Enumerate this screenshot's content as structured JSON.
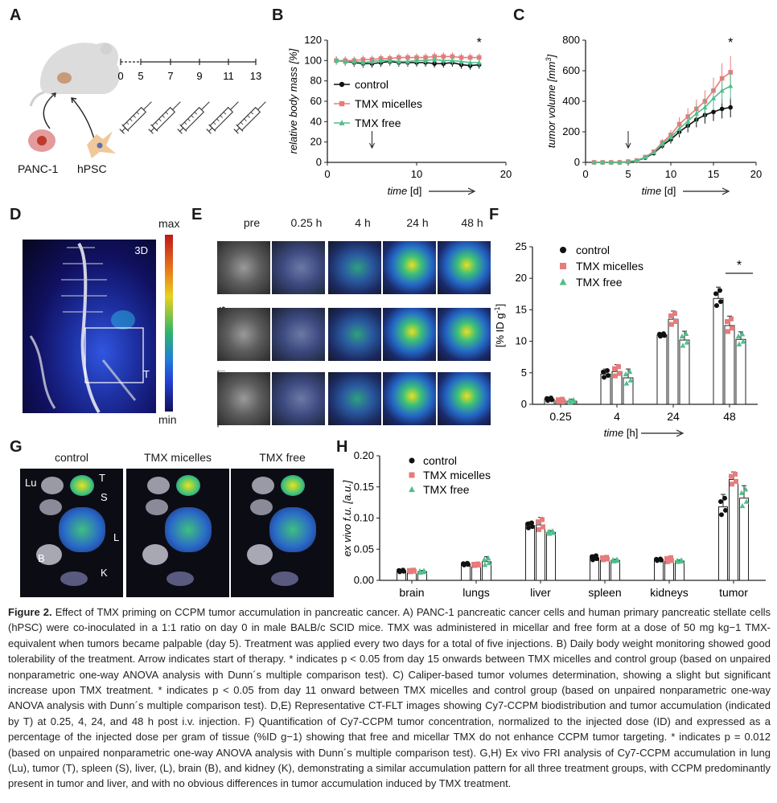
{
  "panel_letters": [
    "A",
    "B",
    "C",
    "D",
    "E",
    "F",
    "G",
    "H"
  ],
  "panel_a": {
    "labels": {
      "panc": "PANC-1",
      "hpsc": "hPSC"
    },
    "timeline_ticks": [
      "0",
      "5",
      "7",
      "9",
      "11",
      "13"
    ]
  },
  "panel_d": {
    "label_3d": "3D",
    "label_t": "T",
    "scale_max": "max",
    "scale_min": "min",
    "colors": [
      "#c01818",
      "#e8d21e",
      "#2fb56a",
      "#2443d8",
      "#11115a"
    ]
  },
  "panel_e": {
    "timepoints": [
      "pre",
      "0.25 h",
      "4 h",
      "24 h",
      "48 h"
    ],
    "rows": [
      "control",
      "TMX micelles",
      "TMX free"
    ]
  },
  "panel_g": {
    "columns": [
      "control",
      "TMX micelles",
      "TMX free"
    ],
    "organ_labels": {
      "lu": "Lu",
      "t": "T",
      "s": "S",
      "l": "L",
      "b": "B",
      "k": "K"
    }
  },
  "legend": {
    "control": "control",
    "micelles": "TMX micelles",
    "free": "TMX free"
  },
  "colors": {
    "control": "#111111",
    "micelles": "#e87b7b",
    "free": "#4fbf8c"
  },
  "chart_data": [
    {
      "id": "B",
      "type": "line",
      "xlabel": "time [d]",
      "ylabel": "relative body mass [%]",
      "xlim": [
        0,
        20
      ],
      "ylim": [
        0,
        120
      ],
      "xticks": [
        0,
        10,
        20
      ],
      "yticks": [
        0,
        20,
        40,
        60,
        80,
        100,
        120
      ],
      "annotation": "*",
      "x": [
        1,
        2,
        3,
        4,
        5,
        6,
        7,
        8,
        9,
        10,
        11,
        12,
        13,
        14,
        15,
        16,
        17
      ],
      "series": [
        {
          "name": "control",
          "values": [
            100,
            99,
            98,
            97,
            97,
            98,
            99,
            98,
            98,
            98,
            98,
            97,
            97,
            98,
            96,
            95,
            96
          ]
        },
        {
          "name": "TMX micelles",
          "values": [
            100,
            100,
            100,
            101,
            101,
            102,
            102,
            103,
            103,
            103,
            103,
            104,
            104,
            104,
            103,
            103,
            103
          ]
        },
        {
          "name": "TMX free",
          "values": [
            100,
            99,
            99,
            98,
            99,
            100,
            100,
            99,
            99,
            100,
            100,
            101,
            100,
            100,
            99,
            98,
            98
          ]
        }
      ]
    },
    {
      "id": "C",
      "type": "line",
      "xlabel": "time [d]",
      "ylabel": "tumor volume [mm3]",
      "xlim": [
        0,
        20
      ],
      "ylim": [
        0,
        800
      ],
      "xticks": [
        0,
        5,
        10,
        15,
        20
      ],
      "yticks": [
        0,
        200,
        400,
        600,
        800
      ],
      "annotation": "*",
      "x": [
        1,
        2,
        3,
        4,
        5,
        6,
        7,
        8,
        9,
        10,
        11,
        12,
        13,
        14,
        15,
        16,
        17
      ],
      "series": [
        {
          "name": "control",
          "values": [
            0,
            0,
            0,
            0,
            5,
            10,
            30,
            60,
            110,
            150,
            200,
            240,
            280,
            310,
            330,
            350,
            360
          ]
        },
        {
          "name": "TMX micelles",
          "values": [
            0,
            0,
            0,
            0,
            5,
            12,
            35,
            70,
            130,
            180,
            250,
            300,
            350,
            400,
            470,
            550,
            590
          ]
        },
        {
          "name": "TMX free",
          "values": [
            0,
            0,
            0,
            0,
            5,
            12,
            33,
            65,
            120,
            165,
            220,
            270,
            320,
            360,
            420,
            470,
            500
          ]
        }
      ]
    },
    {
      "id": "F",
      "type": "bar",
      "xlabel": "time [h]",
      "ylabel": "[% ID g-1]",
      "categories": [
        "0.25",
        "4",
        "24",
        "48"
      ],
      "ylim": [
        0,
        25
      ],
      "yticks": [
        0,
        5,
        10,
        15,
        20,
        25
      ],
      "annotation": "*",
      "series": [
        {
          "name": "control",
          "values": [
            0.8,
            4.8,
            11.0,
            16.8
          ],
          "errors": [
            0.3,
            0.8,
            0.3,
            1.8
          ]
        },
        {
          "name": "TMX micelles",
          "values": [
            0.6,
            5.2,
            13.5,
            12.5
          ],
          "errors": [
            0.3,
            1.1,
            1.3,
            1.5
          ]
        },
        {
          "name": "TMX free",
          "values": [
            0.5,
            4.2,
            10.2,
            10.3
          ],
          "errors": [
            0.3,
            1.4,
            1.4,
            1.2
          ]
        }
      ]
    },
    {
      "id": "H",
      "type": "bar",
      "ylabel": "ex vivo f.u. [a.u.]",
      "categories": [
        "brain",
        "lungs",
        "liver",
        "spleen",
        "kidneys",
        "tumor"
      ],
      "ylim": [
        0,
        0.2
      ],
      "yticks": [
        "0.00",
        "0.05",
        "0.10",
        "0.15",
        "0.20"
      ],
      "series": [
        {
          "name": "control",
          "values": [
            0.015,
            0.026,
            0.088,
            0.036,
            0.033,
            0.118
          ],
          "errors": [
            0.002,
            0.002,
            0.006,
            0.005,
            0.002,
            0.02
          ]
        },
        {
          "name": "TMX micelles",
          "values": [
            0.015,
            0.025,
            0.089,
            0.035,
            0.033,
            0.162
          ],
          "errors": [
            0.002,
            0.002,
            0.012,
            0.003,
            0.005,
            0.012
          ]
        },
        {
          "name": "TMX free",
          "values": [
            0.014,
            0.03,
            0.077,
            0.032,
            0.031,
            0.132
          ],
          "errors": [
            0.002,
            0.008,
            0.003,
            0.002,
            0.002,
            0.02
          ]
        }
      ]
    }
  ],
  "caption": {
    "label": "Figure 2.",
    "text": "Effect of TMX priming on CCPM tumor accumulation in pancreatic cancer. A) PANC-1 pancreatic cancer cells and human primary pancreatic stellate cells (hPSC) were co-inoculated in a 1:1 ratio on day 0 in male BALB/c SCID mice. TMX was administered in micellar and free form at a dose of 50 mg kg−1 TMX-equivalent when tumors became palpable (day 5). Treatment was applied every two days for a total of five injections. B) Daily body weight monitoring showed good tolerability of the treatment. Arrow indicates start of therapy. * indicates p < 0.05 from day 15 onwards between TMX micelles and control group (based on unpaired nonparametric one-way ANOVA analysis with Dunn´s multiple comparison test). C) Caliper-based tumor volumes determination, showing a slight but significant increase upon TMX treatment. * indicates p < 0.05 from day 11 onward between TMX micelles and control group (based on unpaired nonparametric one-way ANOVA analysis with Dunn´s multiple comparison test). D,E) Representative CT-FLT images showing Cy7-CCPM biodistribution and tumor accumulation (indicated by T) at 0.25, 4, 24, and 48 h post i.v. injection. F) Quantification of Cy7-CCPM tumor concentration, normalized to the injected dose (ID) and expressed as a percentage of the injected dose per gram of tissue (%ID g−1) showing that free and micellar TMX do not enhance CCPM tumor targeting. * indicates p = 0.012 (based on unpaired nonparametric one-way ANOVA analysis with Dunn´s multiple comparison test). G,H) Ex vivo FRI analysis of Cy7-CCPM accumulation in lung (Lu), tumor (T), spleen (S), liver, (L), brain (B), and kidney (K), demonstrating a similar accumulation pattern for all three treatment groups, with CCPM predominantly present in tumor and liver, and with no obvious differences in tumor accumulation induced by TMX treatment."
  }
}
